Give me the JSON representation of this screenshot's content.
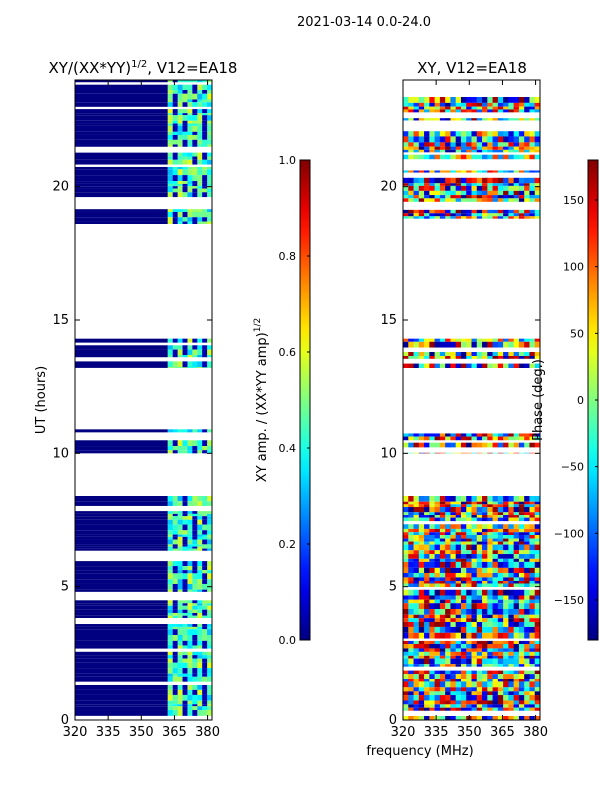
{
  "suptitle": "2021-03-14 0.0-24.0",
  "xlabel_shared": "frequency (MHz)",
  "chart_data": [
    {
      "type": "heatmap",
      "title": "XY/(XX*YY)",
      "title_sup": "1/2",
      "title_suffix": ", V12=EA18",
      "xlabel": "",
      "ylabel": "UT (hours)",
      "xlim": [
        320,
        382
      ],
      "ylim": [
        0,
        24
      ],
      "xticks": [
        320,
        335,
        350,
        365,
        380
      ],
      "yticks": [
        0,
        5,
        10,
        15,
        20
      ],
      "colormap": "jet",
      "colorbar": {
        "label": "XY amp. / (XX*YY amp)",
        "label_sup": "1/2",
        "range": [
          0.0,
          1.0
        ],
        "ticks": [
          "0.0",
          "0.2",
          "0.4",
          "0.6",
          "0.8",
          "1.0"
        ]
      },
      "data_time_ranges_hours": [
        [
          0.0,
          8.4
        ],
        [
          10.0,
          10.9
        ],
        [
          13.2,
          14.3
        ],
        [
          18.6,
          24.0
        ]
      ],
      "quantity": "amplitude ratio",
      "description_values": {
        "low_freq_band_mhz": [
          320,
          362
        ],
        "low_freq_value": 0.0,
        "high_freq_band_mhz": [
          362,
          382
        ],
        "high_freq_value_range": [
          0.3,
          0.6
        ]
      }
    },
    {
      "type": "heatmap",
      "title": "XY, V12=EA18",
      "xlabel": "",
      "ylabel": "",
      "xlim": [
        320,
        382
      ],
      "ylim": [
        0,
        24
      ],
      "xticks": [
        320,
        335,
        350,
        365,
        380
      ],
      "yticks": [
        0,
        5,
        10,
        15,
        20
      ],
      "colormap": "jet",
      "colorbar": {
        "label": "Phase (deg.)",
        "range": [
          -180,
          180
        ],
        "ticks": [
          "150",
          "100",
          "50",
          "0",
          "−50",
          "−100",
          "−150"
        ],
        "tick_values": [
          150,
          100,
          50,
          0,
          -50,
          -100,
          -150
        ]
      },
      "data_time_ranges_hours": [
        [
          0.0,
          8.4
        ],
        [
          10.0,
          10.9
        ],
        [
          13.2,
          14.3
        ],
        [
          18.6,
          24.0
        ]
      ],
      "quantity": "phase (deg)",
      "description_values": {
        "phase_range_deg": [
          -180,
          180
        ]
      }
    }
  ]
}
